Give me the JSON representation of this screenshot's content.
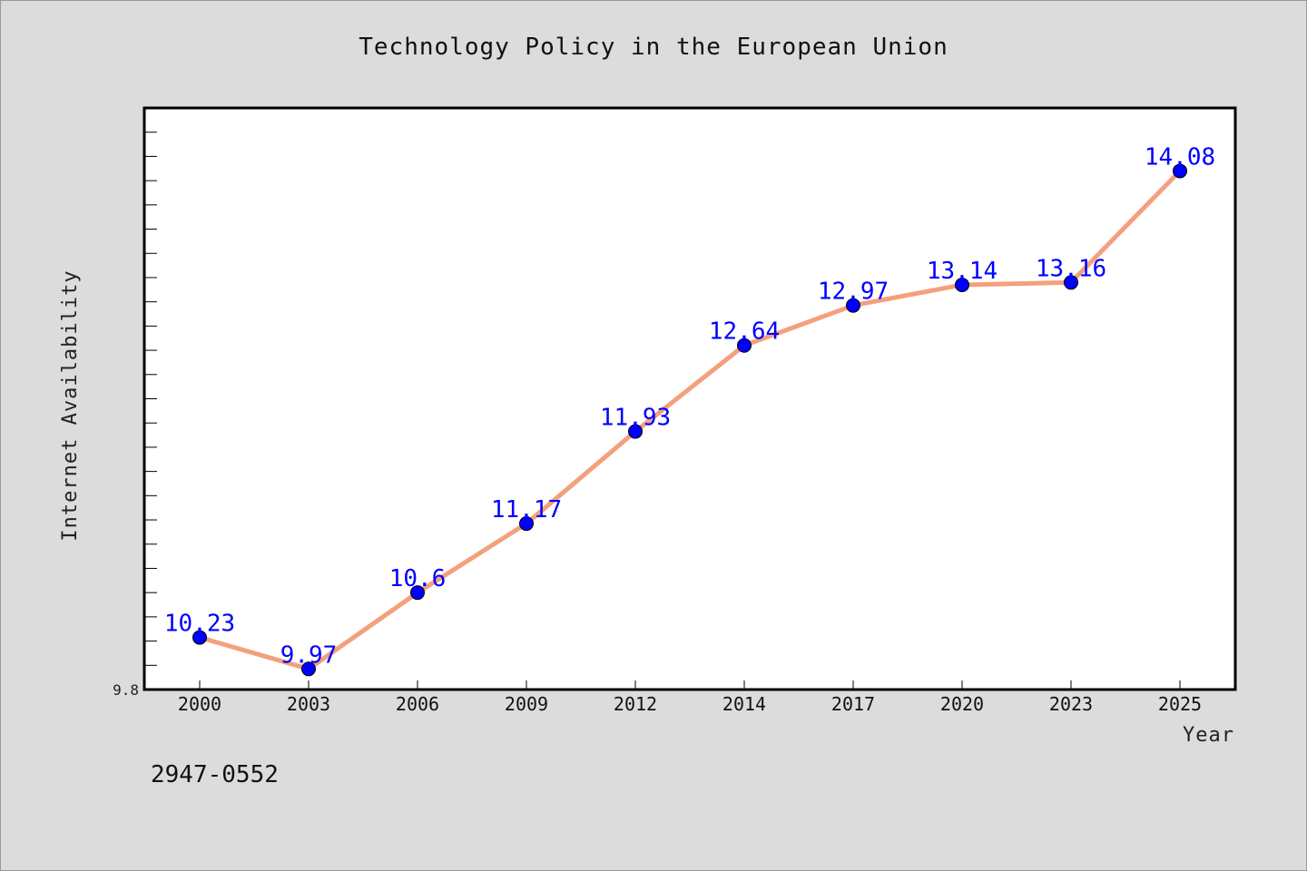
{
  "chart_data": {
    "type": "line",
    "title": "Technology Policy in the European Union",
    "xlabel": "Year",
    "ylabel": "Internet Availability",
    "categories": [
      "2000",
      "2003",
      "2006",
      "2009",
      "2012",
      "2014",
      "2017",
      "2020",
      "2023",
      "2025"
    ],
    "values": [
      10.23,
      9.97,
      10.6,
      11.17,
      11.93,
      12.64,
      12.97,
      13.14,
      13.16,
      14.08
    ],
    "data_labels": [
      "10.23",
      "9.97",
      "10.6",
      "11.17",
      "11.93",
      "12.64",
      "12.97",
      "13.14",
      "13.16",
      "14.08"
    ],
    "y_tick_label": "9.8",
    "ylim": [
      9.8,
      14.6
    ],
    "grid": false,
    "legend": "none",
    "colors": {
      "line": "#f4a07e",
      "marker": "#0000ff",
      "label": "#0000ff",
      "frame": "#000000"
    }
  },
  "footer": {
    "code": "2947-0552"
  }
}
